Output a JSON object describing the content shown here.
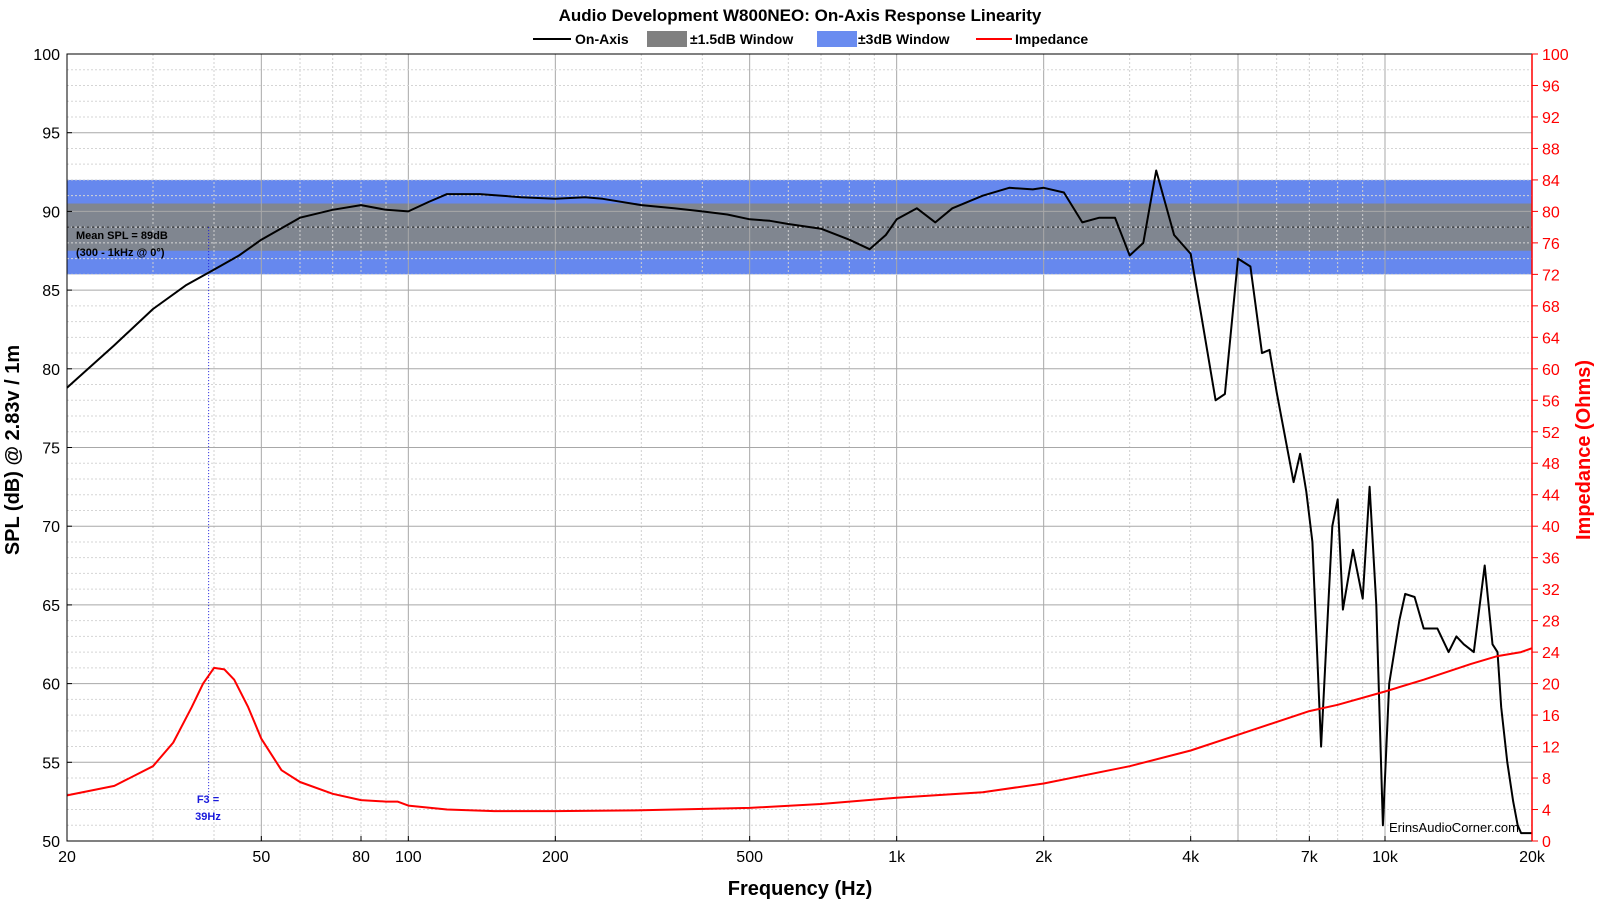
{
  "chart_data": {
    "type": "line",
    "title": "Audio Development W800NEO: On-Axis Response Linearity",
    "xlabel": "Frequency (Hz)",
    "ylabel": "SPL (dB) @ 2.83v / 1m",
    "y2label": "Impedance (Ohms)",
    "xscale": "log",
    "xlim": [
      20,
      20000
    ],
    "ylim": [
      50,
      100
    ],
    "y2lim": [
      0,
      100
    ],
    "grid": true,
    "legend_position": "top-center",
    "x_ticks": [
      {
        "value": 20,
        "label": "20"
      },
      {
        "value": 50,
        "label": "50"
      },
      {
        "value": 80,
        "label": "80"
      },
      {
        "value": 100,
        "label": "100"
      },
      {
        "value": 200,
        "label": "200"
      },
      {
        "value": 500,
        "label": "500"
      },
      {
        "value": 1000,
        "label": "1k"
      },
      {
        "value": 2000,
        "label": "2k"
      },
      {
        "value": 4000,
        "label": "4k"
      },
      {
        "value": 7000,
        "label": "7k"
      },
      {
        "value": 10000,
        "label": "10k"
      },
      {
        "value": 20000,
        "label": "20k"
      }
    ],
    "y_ticks": [
      "50",
      "55",
      "60",
      "65",
      "70",
      "75",
      "80",
      "85",
      "90",
      "95",
      "100"
    ],
    "y2_ticks": [
      "0",
      "4",
      "8",
      "12",
      "16",
      "20",
      "24",
      "28",
      "32",
      "36",
      "40",
      "44",
      "48",
      "52",
      "56",
      "60",
      "64",
      "68",
      "72",
      "76",
      "80",
      "84",
      "88",
      "92",
      "96",
      "100"
    ],
    "legend": [
      {
        "name": "On-Axis",
        "color": "#000000",
        "kind": "line"
      },
      {
        "name": "±1.5dB Window",
        "color": "#808080",
        "kind": "box"
      },
      {
        "name": "±3dB Window",
        "color": "#6a8cf0",
        "kind": "box"
      },
      {
        "name": "Impedance",
        "color": "#ff0000",
        "kind": "line"
      }
    ],
    "bands": [
      {
        "name": "±3dB Window",
        "y0": 86,
        "y1": 92,
        "color": "#6688ee"
      },
      {
        "name": "±1.5dB Window",
        "y0": 87.5,
        "y1": 90.5,
        "color": "#808690"
      }
    ],
    "mean_line": 89,
    "f3_marker": 39,
    "annotations": {
      "mean_line1": "Mean SPL = 89dB",
      "mean_line2": "(300 - 1kHz @ 0°)",
      "f3_line1": "F3 =",
      "f3_line2": "39Hz",
      "watermark": "ErinsAudioCorner.com"
    },
    "series": [
      {
        "name": "On-Axis",
        "axis": "left",
        "color": "#000000",
        "x": [
          20,
          25,
          30,
          35,
          40,
          45,
          50,
          60,
          70,
          80,
          90,
          100,
          110,
          120,
          140,
          170,
          200,
          230,
          250,
          300,
          350,
          400,
          450,
          500,
          550,
          600,
          700,
          800,
          880,
          950,
          1000,
          1100,
          1200,
          1300,
          1500,
          1700,
          1900,
          2000,
          2200,
          2400,
          2600,
          2800,
          3000,
          3200,
          3400,
          3700,
          4000,
          4200,
          4500,
          4700,
          5000,
          5300,
          5600,
          5800,
          6000,
          6500,
          6700,
          6900,
          7100,
          7400,
          7800,
          8000,
          8200,
          8600,
          9000,
          9300,
          9600,
          9900,
          10200,
          10700,
          11000,
          11500,
          12000,
          12800,
          13500,
          14000,
          14500,
          15200,
          16000,
          16600,
          17000,
          17300,
          17800,
          18300,
          18700,
          19000,
          19500,
          20000
        ],
        "y": [
          78.8,
          81.5,
          83.8,
          85.3,
          86.3,
          87.2,
          88.2,
          89.6,
          90.1,
          90.4,
          90.1,
          90,
          90.6,
          91.1,
          91.1,
          90.9,
          90.8,
          90.9,
          90.8,
          90.4,
          90.2,
          90,
          89.8,
          89.5,
          89.4,
          89.2,
          88.9,
          88.2,
          87.6,
          88.5,
          89.5,
          90.2,
          89.3,
          90.2,
          91,
          91.5,
          91.4,
          91.5,
          91.2,
          89.3,
          89.6,
          89.6,
          87.2,
          88,
          92.6,
          88.5,
          87.3,
          83.5,
          78,
          78.4,
          87,
          86.5,
          81,
          81.2,
          78.5,
          72.8,
          74.6,
          72.2,
          69,
          56,
          70,
          71.7,
          64.7,
          68.5,
          65.4,
          72.5,
          65,
          51,
          60,
          64,
          65.7,
          65.5,
          63.5,
          63.5,
          62,
          63,
          62.5,
          62,
          67.5,
          62.5,
          62,
          58.5,
          55,
          52.5,
          51,
          50.5,
          50.5,
          50.5
        ]
      },
      {
        "name": "Impedance",
        "axis": "right",
        "color": "#ff0000",
        "x": [
          20,
          25,
          30,
          33,
          36,
          38,
          40,
          42,
          44,
          47,
          50,
          55,
          60,
          70,
          80,
          90,
          95,
          100,
          120,
          150,
          200,
          300,
          500,
          700,
          1000,
          1500,
          2000,
          3000,
          4000,
          5000,
          7000,
          8000,
          10000,
          12000,
          15000,
          17000,
          19000,
          20000
        ],
        "y": [
          5.8,
          7,
          9.5,
          12.5,
          17,
          20,
          22,
          21.8,
          20.5,
          17,
          13,
          9,
          7.5,
          6,
          5.2,
          5,
          5,
          4.5,
          4,
          3.8,
          3.8,
          3.9,
          4.2,
          4.7,
          5.5,
          6.2,
          7.3,
          9.5,
          11.5,
          13.5,
          16.5,
          17.3,
          19,
          20.5,
          22.5,
          23.5,
          24,
          24.5
        ]
      }
    ]
  }
}
